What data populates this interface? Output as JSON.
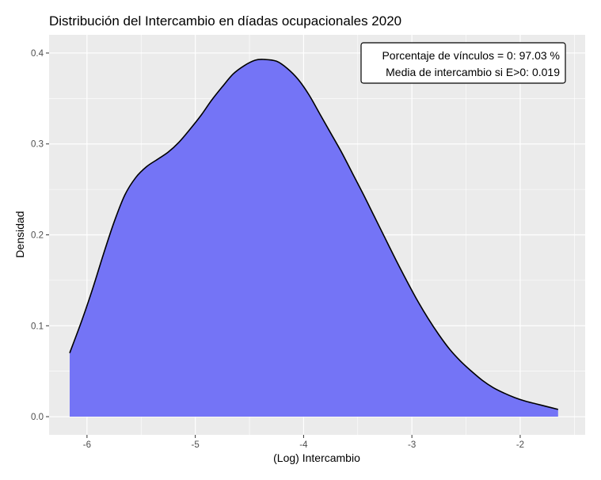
{
  "chart_data": {
    "type": "area",
    "title": "Distribución del Intercambio en díadas ocupacionales 2020",
    "xlabel": "(Log) Intercambio",
    "ylabel": "Densidad",
    "xlim": [
      -6.35,
      -1.4
    ],
    "ylim": [
      -0.02,
      0.42
    ],
    "x_ticks": [
      -6,
      -5,
      -4,
      -3,
      -2
    ],
    "x_tick_labels": [
      "-6",
      "-5",
      "-4",
      "-3",
      "-2"
    ],
    "y_ticks": [
      0.0,
      0.1,
      0.2,
      0.3,
      0.4
    ],
    "y_tick_labels": [
      "0.0",
      "0.1",
      "0.2",
      "0.3",
      "0.4"
    ],
    "grid": true,
    "fill_color": "#7474f6",
    "line_color": "#000000",
    "panel_color": "#ebebeb",
    "grid_color": "#ffffff",
    "x": [
      -6.16,
      -6.05,
      -5.95,
      -5.85,
      -5.75,
      -5.65,
      -5.55,
      -5.45,
      -5.35,
      -5.25,
      -5.15,
      -5.05,
      -4.95,
      -4.85,
      -4.75,
      -4.65,
      -4.55,
      -4.45,
      -4.37,
      -4.25,
      -4.15,
      -4.05,
      -3.95,
      -3.85,
      -3.75,
      -3.65,
      -3.55,
      -3.45,
      -3.35,
      -3.25,
      -3.15,
      -3.05,
      -2.95,
      -2.85,
      -2.75,
      -2.65,
      -2.55,
      -2.45,
      -2.35,
      -2.25,
      -2.15,
      -2.05,
      -1.95,
      -1.85,
      -1.75,
      -1.65
    ],
    "y": [
      0.07,
      0.105,
      0.14,
      0.178,
      0.214,
      0.244,
      0.263,
      0.275,
      0.283,
      0.291,
      0.302,
      0.316,
      0.331,
      0.348,
      0.363,
      0.377,
      0.386,
      0.392,
      0.393,
      0.391,
      0.383,
      0.371,
      0.354,
      0.333,
      0.312,
      0.291,
      0.268,
      0.245,
      0.221,
      0.197,
      0.173,
      0.15,
      0.128,
      0.108,
      0.09,
      0.074,
      0.061,
      0.05,
      0.04,
      0.032,
      0.026,
      0.021,
      0.017,
      0.014,
      0.011,
      0.008
    ],
    "annotation": {
      "line1": "Porcentaje de vínculos = 0: 97.03 %",
      "line2": "Media de intercambio si E>0: 0.019"
    }
  }
}
